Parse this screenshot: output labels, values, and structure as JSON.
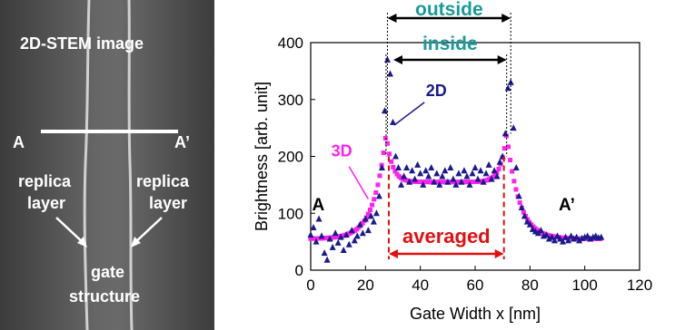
{
  "stem_panel": {
    "title": "2D-STEM image",
    "line_start": "A",
    "line_end": "A’",
    "left_label_1": "replica",
    "left_label_2": "layer",
    "right_label_1": "replica",
    "right_label_2": "layer",
    "center_label_1": "gate",
    "center_label_2": "structure"
  },
  "annotations": {
    "outside": "outside",
    "inside": "inside",
    "averaged": "averaged",
    "label_2d": "2D",
    "label_3d": "3D",
    "point_a": "A",
    "point_a_prime": "A’"
  },
  "colors": {
    "series_2d": "#1a1a8c",
    "series_3d": "#ff22ee",
    "teal_text": "#1a9a9a",
    "averaged": "#e01010",
    "background_image": "#555555"
  },
  "chart_data": {
    "type": "scatter",
    "xlabel": "Gate Width  x [nm]",
    "ylabel": "Brightness  [arb. unit]",
    "xlim": [
      0,
      120
    ],
    "ylim": [
      0,
      400
    ],
    "xticks": [
      0,
      20,
      40,
      60,
      80,
      100,
      120
    ],
    "yticks": [
      0,
      100,
      200,
      300,
      400
    ],
    "grid": false,
    "series": [
      {
        "name": "2D",
        "marker": "triangle",
        "points": [
          [
            0,
            62
          ],
          [
            1,
            75
          ],
          [
            2,
            50
          ],
          [
            3,
            90
          ],
          [
            4,
            60
          ],
          [
            5,
            30
          ],
          [
            6,
            18
          ],
          [
            7,
            55
          ],
          [
            8,
            40
          ],
          [
            9,
            65
          ],
          [
            10,
            48
          ],
          [
            11,
            58
          ],
          [
            12,
            35
          ],
          [
            13,
            62
          ],
          [
            14,
            45
          ],
          [
            15,
            70
          ],
          [
            16,
            52
          ],
          [
            17,
            60
          ],
          [
            18,
            80
          ],
          [
            19,
            65
          ],
          [
            20,
            90
          ],
          [
            21,
            70
          ],
          [
            22,
            95
          ],
          [
            23,
            85
          ],
          [
            24,
            100
          ],
          [
            25,
            130
          ],
          [
            26,
            180
          ],
          [
            27,
            280
          ],
          [
            28,
            370
          ],
          [
            29,
            345
          ],
          [
            30,
            260
          ],
          [
            31,
            200
          ],
          [
            32,
            180
          ],
          [
            33,
            150
          ],
          [
            34,
            165
          ],
          [
            35,
            180
          ],
          [
            36,
            155
          ],
          [
            37,
            175
          ],
          [
            38,
            160
          ],
          [
            39,
            185
          ],
          [
            40,
            170
          ],
          [
            41,
            150
          ],
          [
            42,
            175
          ],
          [
            43,
            165
          ],
          [
            44,
            180
          ],
          [
            45,
            155
          ],
          [
            46,
            170
          ],
          [
            47,
            150
          ],
          [
            48,
            165
          ],
          [
            49,
            175
          ],
          [
            50,
            155
          ],
          [
            51,
            180
          ],
          [
            52,
            160
          ],
          [
            53,
            150
          ],
          [
            54,
            170
          ],
          [
            55,
            155
          ],
          [
            56,
            175
          ],
          [
            57,
            165
          ],
          [
            58,
            150
          ],
          [
            59,
            170
          ],
          [
            60,
            180
          ],
          [
            61,
            160
          ],
          [
            62,
            175
          ],
          [
            63,
            155
          ],
          [
            64,
            170
          ],
          [
            65,
            185
          ],
          [
            66,
            160
          ],
          [
            67,
            175
          ],
          [
            68,
            165
          ],
          [
            69,
            190
          ],
          [
            70,
            200
          ],
          [
            71,
            240
          ],
          [
            72,
            320
          ],
          [
            73,
            330
          ],
          [
            74,
            250
          ],
          [
            75,
            180
          ],
          [
            76,
            130
          ],
          [
            77,
            110
          ],
          [
            78,
            95
          ],
          [
            79,
            85
          ],
          [
            80,
            80
          ],
          [
            81,
            72
          ],
          [
            82,
            68
          ],
          [
            83,
            65
          ],
          [
            84,
            70
          ],
          [
            85,
            60
          ],
          [
            86,
            62
          ],
          [
            87,
            55
          ],
          [
            88,
            58
          ],
          [
            89,
            52
          ],
          [
            90,
            60
          ],
          [
            91,
            55
          ],
          [
            92,
            50
          ],
          [
            93,
            58
          ],
          [
            94,
            52
          ],
          [
            95,
            60
          ],
          [
            96,
            55
          ],
          [
            97,
            58
          ],
          [
            98,
            52
          ],
          [
            99,
            56
          ],
          [
            100,
            58
          ],
          [
            101,
            60
          ],
          [
            102,
            55
          ],
          [
            103,
            58
          ],
          [
            104,
            60
          ],
          [
            105,
            57
          ],
          [
            106,
            58
          ]
        ]
      },
      {
        "name": "3D",
        "marker": "square",
        "x_range": [
          0,
          106
        ],
        "peak_left_x": 27.5,
        "peak_right_x": 71.5,
        "peak_value": 240,
        "baseline": 55,
        "plateau": 155
      }
    ],
    "markers_vertical": {
      "outside": [
        28,
        73
      ],
      "inside": [
        27.5,
        71.5
      ],
      "averaged": [
        28.5,
        70.5
      ]
    }
  }
}
